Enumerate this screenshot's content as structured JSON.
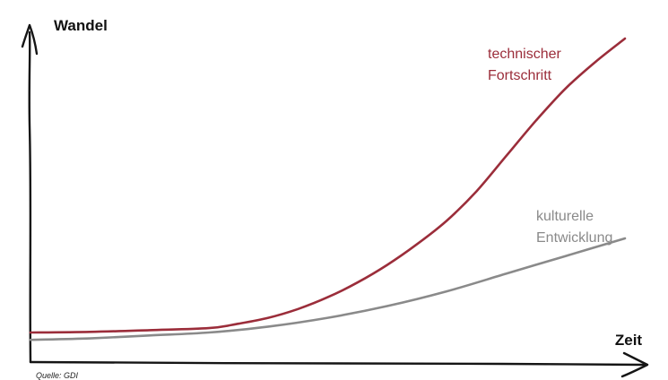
{
  "chart_data": {
    "type": "line",
    "xlabel": "Zeit",
    "ylabel": "Wandel",
    "source": "Quelle: GDI",
    "xlim": [
      0,
      100
    ],
    "ylim": [
      0,
      100
    ],
    "grid": false,
    "series": [
      {
        "name_lines": [
          "technischer",
          "Fortschritt"
        ],
        "color": "#9b2d3a",
        "x": [
          0,
          10,
          20,
          30,
          35,
          40,
          45,
          50,
          55,
          60,
          65,
          70,
          75,
          80,
          85,
          90,
          95,
          100
        ],
        "y": [
          0,
          0.2,
          0.8,
          1.5,
          3,
          5,
          8,
          12,
          17,
          23,
          30,
          38,
          48,
          60,
          72,
          83,
          92,
          100
        ]
      },
      {
        "name_lines": [
          "kulturelle",
          "Entwicklung"
        ],
        "color": "#8a8a8a",
        "x": [
          0,
          10,
          20,
          30,
          40,
          50,
          60,
          70,
          80,
          90,
          100
        ],
        "y": [
          -2.5,
          -2,
          -1,
          0,
          2,
          5,
          9,
          14,
          20,
          26,
          32
        ]
      }
    ]
  }
}
